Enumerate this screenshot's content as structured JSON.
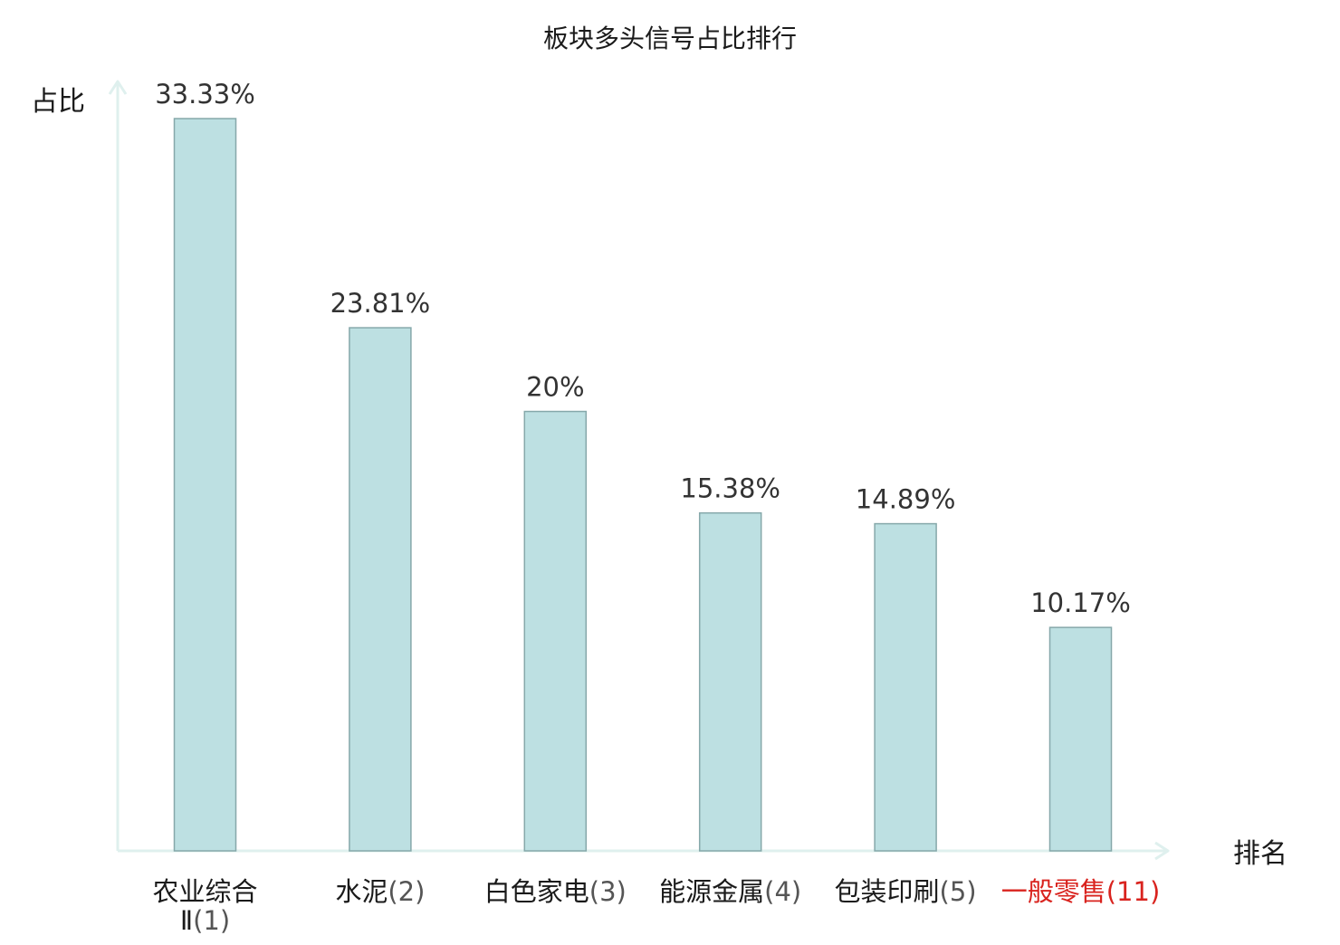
{
  "chart_data": {
    "type": "bar",
    "title": "板块多头信号占比排行",
    "ylabel": "占比",
    "xlabel": "排名",
    "categories": [
      {
        "name_lines": [
          "农业综合",
          "Ⅱ"
        ],
        "rank": "(1)",
        "highlight": false
      },
      {
        "name_lines": [
          "水泥"
        ],
        "rank": "(2)",
        "highlight": false
      },
      {
        "name_lines": [
          "白色家电"
        ],
        "rank": "(3)",
        "highlight": false
      },
      {
        "name_lines": [
          "能源金属"
        ],
        "rank": "(4)",
        "highlight": false
      },
      {
        "name_lines": [
          "包装印刷"
        ],
        "rank": "(5)",
        "highlight": false
      },
      {
        "name_lines": [
          "一般零售"
        ],
        "rank": "(11)",
        "highlight": true
      }
    ],
    "values": [
      33.33,
      23.81,
      20,
      15.38,
      14.89,
      10.17
    ],
    "value_labels": [
      "33.33%",
      "23.81%",
      "20%",
      "15.38%",
      "14.89%",
      "10.17%"
    ],
    "ylim": [
      0,
      35
    ],
    "grid": false,
    "colors": {
      "bar_fill": "#bde0e2",
      "bar_stroke": "#86a8aa",
      "axis": "#dff0ee",
      "label": "#333333",
      "highlight": "#d9231e"
    }
  }
}
